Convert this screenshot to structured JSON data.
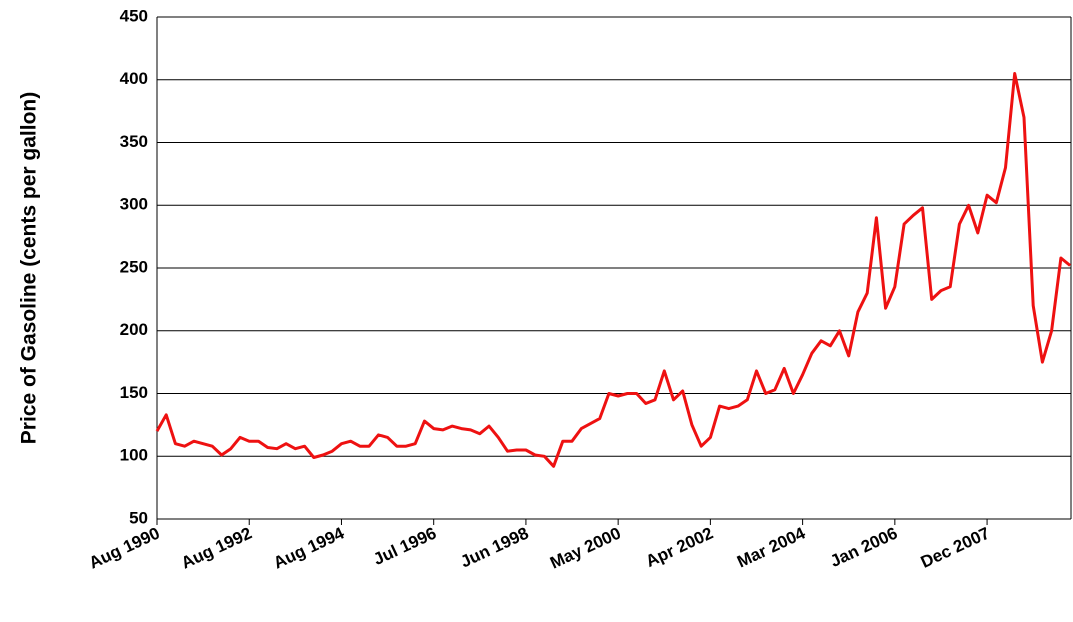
{
  "chart_data": {
    "type": "line",
    "y_label": "Price of Gasoline (cents per gallon)",
    "categories": [
      "Aug 1990",
      null,
      null,
      null,
      null,
      null,
      null,
      null,
      null,
      null,
      "Aug 1992",
      null,
      null,
      null,
      null,
      null,
      null,
      null,
      null,
      null,
      "Aug 1994",
      null,
      null,
      null,
      null,
      null,
      null,
      null,
      null,
      null,
      "Jul 1996",
      null,
      null,
      null,
      null,
      null,
      null,
      null,
      null,
      null,
      "Jun 1998",
      null,
      null,
      null,
      null,
      null,
      null,
      null,
      null,
      null,
      "May 2000",
      null,
      null,
      null,
      null,
      null,
      null,
      null,
      null,
      null,
      "Apr 2002",
      null,
      null,
      null,
      null,
      null,
      null,
      null,
      null,
      null,
      "Mar 2004",
      null,
      null,
      null,
      null,
      null,
      null,
      null,
      null,
      null,
      "Jan 2006",
      null,
      null,
      null,
      null,
      null,
      null,
      null,
      null,
      null,
      "Dec 2007",
      null,
      null,
      null,
      null,
      null,
      null,
      null,
      null,
      null
    ],
    "values": [
      120,
      133,
      110,
      108,
      112,
      110,
      108,
      101,
      106,
      115,
      112,
      112,
      107,
      106,
      110,
      106,
      108,
      99,
      101,
      104,
      110,
      112,
      108,
      108,
      117,
      115,
      108,
      108,
      110,
      128,
      122,
      121,
      124,
      122,
      121,
      118,
      124,
      115,
      104,
      105,
      105,
      101,
      100,
      92,
      112,
      112,
      122,
      126,
      130,
      150,
      148,
      150,
      150,
      142,
      145,
      168,
      145,
      152,
      125,
      108,
      115,
      140,
      138,
      140,
      145,
      168,
      150,
      153,
      170,
      150,
      165,
      182,
      192,
      188,
      200,
      180,
      215,
      230,
      290,
      218,
      235,
      285,
      292,
      298,
      225,
      232,
      235,
      285,
      300,
      278,
      308,
      302,
      330,
      405,
      370,
      220,
      175,
      200,
      258,
      252
    ],
    "color": "#ee1111",
    "ylim": [
      50,
      450
    ],
    "yticks": [
      50,
      100,
      150,
      200,
      250,
      300,
      350,
      400,
      450
    ],
    "grid": true
  }
}
